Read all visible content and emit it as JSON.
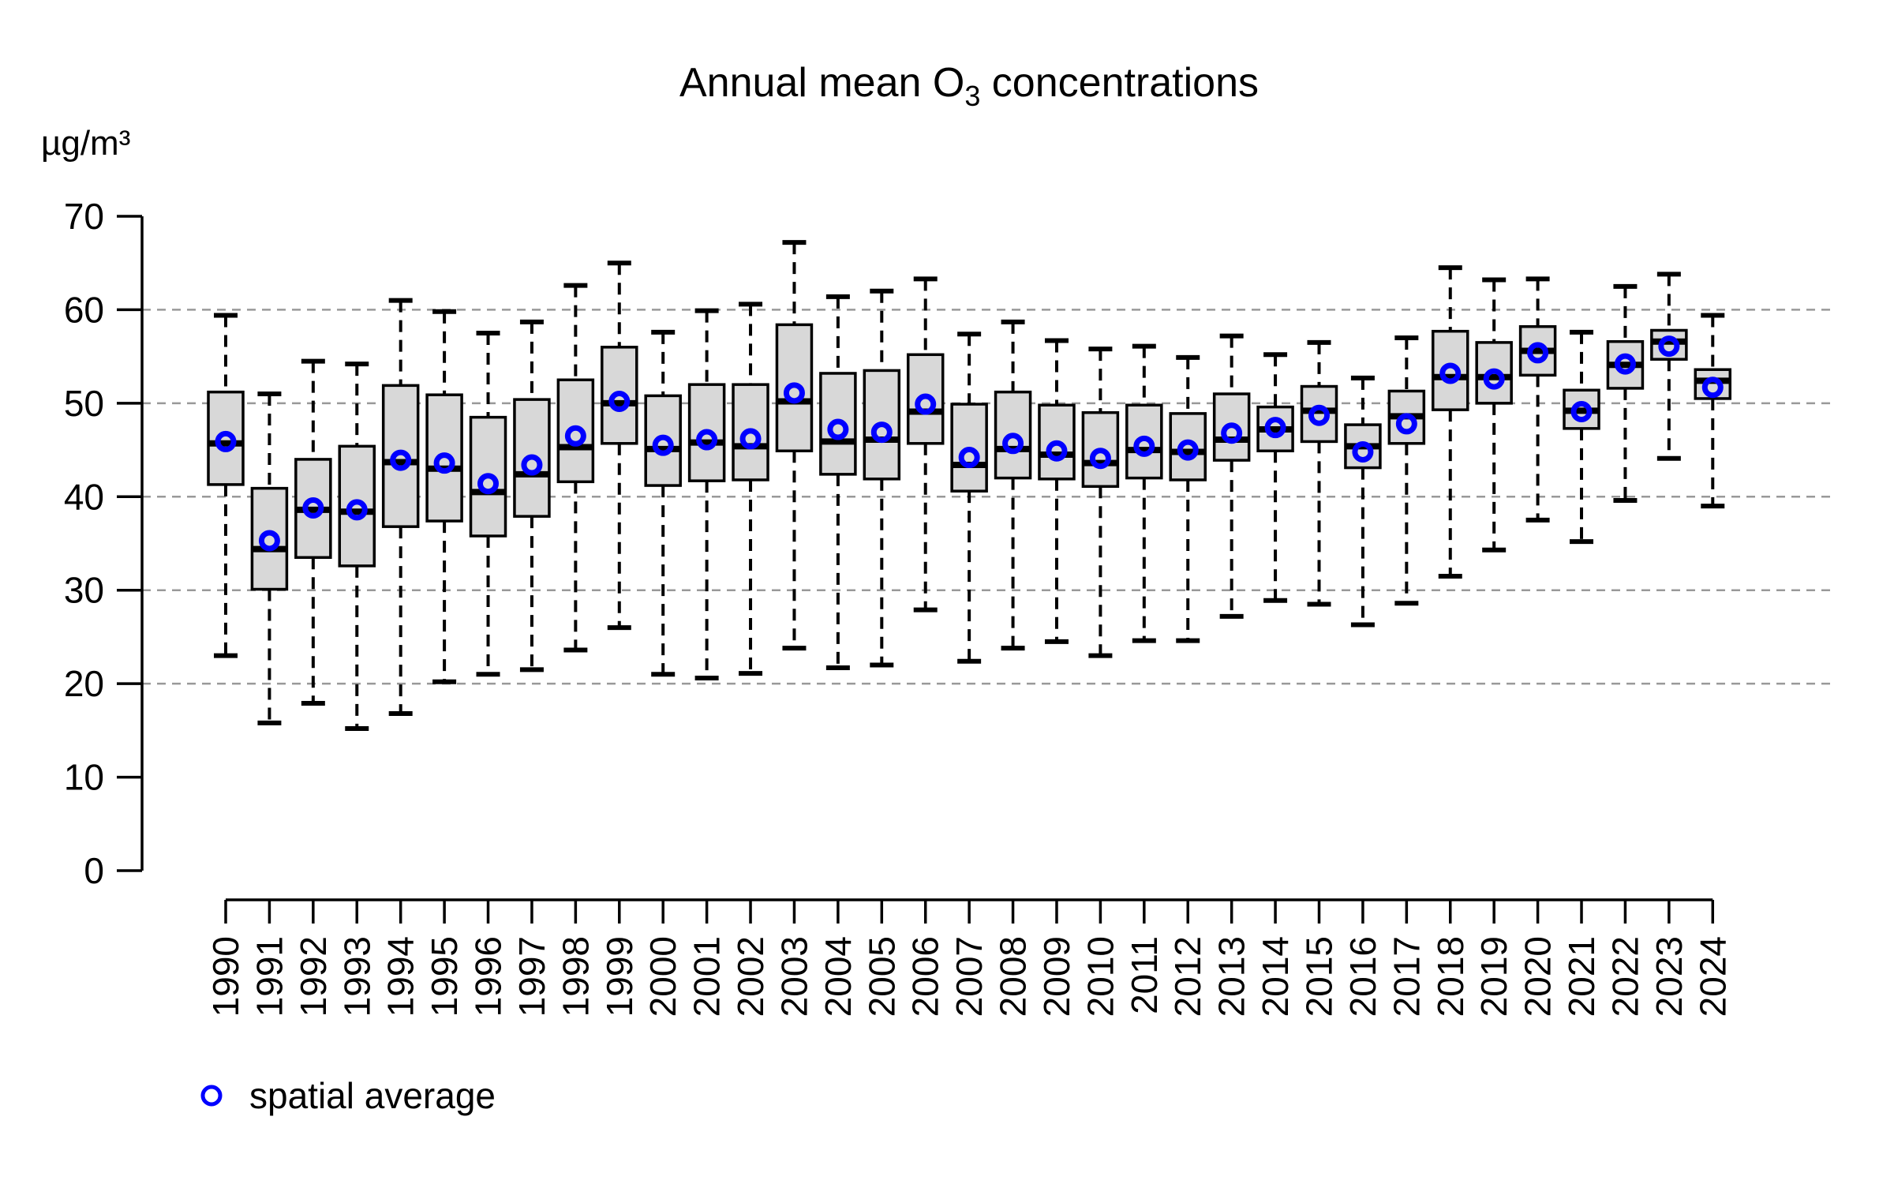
{
  "title": {
    "prefix": "Annual mean O",
    "subscript": "3",
    "suffix": " concentrations"
  },
  "y_axis": {
    "unit_label": "µg/m³",
    "tick_values": [
      0,
      10,
      20,
      30,
      40,
      50,
      60,
      70
    ],
    "gridline_values": [
      20,
      30,
      40,
      50,
      60
    ],
    "range": [
      0,
      70
    ]
  },
  "legend": {
    "marker": "open-circle",
    "label": "spatial average"
  },
  "colors": {
    "box_fill": "#d8d8d8",
    "box_border": "#000000",
    "median": "#000000",
    "whisker": "#000000",
    "mean_marker": "#0000ff",
    "gridline": "#999999",
    "background": "#ffffff",
    "text": "#000000"
  },
  "chart_data": {
    "type": "boxplot",
    "title": "Annual mean O3 concentrations",
    "ylabel": "µg/m³",
    "ylim": [
      0,
      70
    ],
    "grid": "dashed horizontal at 20,30,40,50,60",
    "legend_position": "bottom-left",
    "categories": [
      "1990",
      "1991",
      "1992",
      "1993",
      "1994",
      "1995",
      "1996",
      "1997",
      "1998",
      "1999",
      "2000",
      "2001",
      "2002",
      "2003",
      "2004",
      "2005",
      "2006",
      "2007",
      "2008",
      "2009",
      "2010",
      "2011",
      "2012",
      "2013",
      "2014",
      "2015",
      "2016",
      "2017",
      "2018",
      "2019",
      "2020",
      "2021",
      "2022",
      "2023",
      "2024"
    ],
    "series_note": "values in µg/m³: whisker_low, q1, median, q3, whisker_high, spatial_average(mean)",
    "boxes": [
      {
        "year": "1990",
        "low": 23.0,
        "q1": 41.3,
        "median": 45.7,
        "q3": 51.2,
        "high": 59.4,
        "mean": 45.9
      },
      {
        "year": "1991",
        "low": 15.8,
        "q1": 30.1,
        "median": 34.4,
        "q3": 40.9,
        "high": 51.0,
        "mean": 35.3
      },
      {
        "year": "1992",
        "low": 17.9,
        "q1": 33.5,
        "median": 38.6,
        "q3": 44.0,
        "high": 54.5,
        "mean": 38.8
      },
      {
        "year": "1993",
        "low": 15.2,
        "q1": 32.6,
        "median": 38.4,
        "q3": 45.4,
        "high": 54.2,
        "mean": 38.6
      },
      {
        "year": "1994",
        "low": 16.8,
        "q1": 36.8,
        "median": 43.7,
        "q3": 51.9,
        "high": 61.0,
        "mean": 43.9
      },
      {
        "year": "1995",
        "low": 20.2,
        "q1": 37.4,
        "median": 43.0,
        "q3": 50.9,
        "high": 59.8,
        "mean": 43.6
      },
      {
        "year": "1996",
        "low": 21.0,
        "q1": 35.8,
        "median": 40.5,
        "q3": 48.5,
        "high": 57.5,
        "mean": 41.4
      },
      {
        "year": "1997",
        "low": 21.5,
        "q1": 37.9,
        "median": 42.4,
        "q3": 50.4,
        "high": 58.7,
        "mean": 43.4
      },
      {
        "year": "1998",
        "low": 23.6,
        "q1": 41.6,
        "median": 45.3,
        "q3": 52.5,
        "high": 62.6,
        "mean": 46.5
      },
      {
        "year": "1999",
        "low": 26.0,
        "q1": 45.7,
        "median": 50.0,
        "q3": 56.0,
        "high": 65.0,
        "mean": 50.2
      },
      {
        "year": "2000",
        "low": 21.0,
        "q1": 41.2,
        "median": 45.1,
        "q3": 50.8,
        "high": 57.6,
        "mean": 45.5
      },
      {
        "year": "2001",
        "low": 20.6,
        "q1": 41.7,
        "median": 45.8,
        "q3": 52.0,
        "high": 59.9,
        "mean": 46.1
      },
      {
        "year": "2002",
        "low": 21.1,
        "q1": 41.8,
        "median": 45.4,
        "q3": 52.0,
        "high": 60.6,
        "mean": 46.2
      },
      {
        "year": "2003",
        "low": 23.8,
        "q1": 44.9,
        "median": 50.2,
        "q3": 58.4,
        "high": 67.2,
        "mean": 51.1
      },
      {
        "year": "2004",
        "low": 21.7,
        "q1": 42.4,
        "median": 45.9,
        "q3": 53.2,
        "high": 61.4,
        "mean": 47.2
      },
      {
        "year": "2005",
        "low": 22.0,
        "q1": 41.9,
        "median": 46.1,
        "q3": 53.5,
        "high": 62.0,
        "mean": 46.9
      },
      {
        "year": "2006",
        "low": 27.9,
        "q1": 45.7,
        "median": 49.1,
        "q3": 55.2,
        "high": 63.3,
        "mean": 49.9
      },
      {
        "year": "2007",
        "low": 22.4,
        "q1": 40.6,
        "median": 43.4,
        "q3": 49.9,
        "high": 57.4,
        "mean": 44.2
      },
      {
        "year": "2008",
        "low": 23.8,
        "q1": 42.0,
        "median": 45.1,
        "q3": 51.2,
        "high": 58.7,
        "mean": 45.7
      },
      {
        "year": "2009",
        "low": 24.5,
        "q1": 41.9,
        "median": 44.5,
        "q3": 49.8,
        "high": 56.7,
        "mean": 44.9
      },
      {
        "year": "2010",
        "low": 23.0,
        "q1": 41.1,
        "median": 43.6,
        "q3": 49.0,
        "high": 55.8,
        "mean": 44.1
      },
      {
        "year": "2011",
        "low": 24.6,
        "q1": 42.0,
        "median": 45.0,
        "q3": 49.8,
        "high": 56.1,
        "mean": 45.4
      },
      {
        "year": "2012",
        "low": 24.6,
        "q1": 41.8,
        "median": 44.8,
        "q3": 48.9,
        "high": 54.9,
        "mean": 45.0
      },
      {
        "year": "2013",
        "low": 27.2,
        "q1": 43.9,
        "median": 46.1,
        "q3": 51.0,
        "high": 57.2,
        "mean": 46.8
      },
      {
        "year": "2014",
        "low": 28.9,
        "q1": 44.9,
        "median": 47.2,
        "q3": 49.6,
        "high": 55.2,
        "mean": 47.4
      },
      {
        "year": "2015",
        "low": 28.5,
        "q1": 45.9,
        "median": 49.2,
        "q3": 51.8,
        "high": 56.5,
        "mean": 48.7
      },
      {
        "year": "2016",
        "low": 26.3,
        "q1": 43.1,
        "median": 45.4,
        "q3": 47.7,
        "high": 52.7,
        "mean": 44.8
      },
      {
        "year": "2017",
        "low": 28.6,
        "q1": 45.7,
        "median": 48.6,
        "q3": 51.3,
        "high": 57.0,
        "mean": 47.8
      },
      {
        "year": "2018",
        "low": 31.5,
        "q1": 49.3,
        "median": 52.8,
        "q3": 57.7,
        "high": 64.5,
        "mean": 53.2
      },
      {
        "year": "2019",
        "low": 34.3,
        "q1": 50.0,
        "median": 52.8,
        "q3": 56.5,
        "high": 63.2,
        "mean": 52.6
      },
      {
        "year": "2020",
        "low": 37.5,
        "q1": 53.0,
        "median": 55.6,
        "q3": 58.2,
        "high": 63.3,
        "mean": 55.4
      },
      {
        "year": "2021",
        "low": 35.2,
        "q1": 47.3,
        "median": 49.2,
        "q3": 51.4,
        "high": 57.6,
        "mean": 49.1
      },
      {
        "year": "2022",
        "low": 39.6,
        "q1": 51.6,
        "median": 54.1,
        "q3": 56.6,
        "high": 62.5,
        "mean": 54.2
      },
      {
        "year": "2023",
        "low": 44.1,
        "q1": 54.7,
        "median": 56.6,
        "q3": 57.8,
        "high": 63.8,
        "mean": 56.1
      },
      {
        "year": "2024",
        "low": 39.0,
        "q1": 50.5,
        "median": 52.4,
        "q3": 53.6,
        "high": 59.4,
        "mean": 51.7
      }
    ]
  }
}
